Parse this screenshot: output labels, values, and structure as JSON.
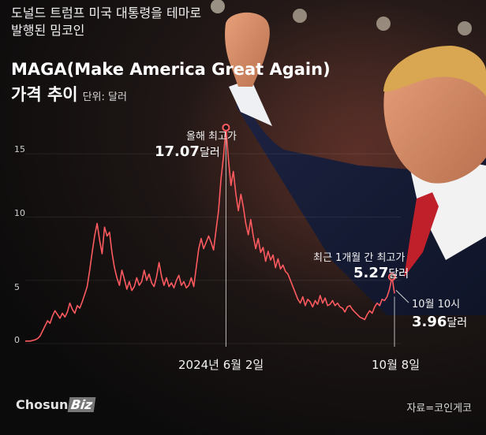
{
  "title": {
    "line1": "도널드 트럼프 미국 대통령을 테마로",
    "line2": "발행된 밈코인",
    "line3": "MAGA(Make America Great Again)",
    "line4": "가격 추이",
    "unit": "단위: 달러"
  },
  "chart_data": {
    "type": "line",
    "title": "MAGA(Make America Great Again) 가격 추이",
    "unit": "단위: 달러",
    "ylim": [
      0,
      17.5
    ],
    "yticks": [
      "0",
      "5",
      "10",
      "15"
    ],
    "xticks": [
      "2024년 6월 2일",
      "10월 8일"
    ],
    "series": [
      {
        "color": "#ff5a5f",
        "values": [
          0.2,
          0.2,
          0.2,
          0.25,
          0.3,
          0.4,
          0.6,
          1.0,
          1.4,
          1.8,
          1.6,
          2.2,
          2.6,
          2.3,
          2.0,
          2.4,
          2.1,
          2.5,
          3.2,
          2.7,
          2.4,
          3.0,
          2.8,
          3.3,
          3.9,
          4.5,
          5.8,
          7.2,
          8.5,
          9.5,
          8.2,
          7.1,
          9.2,
          8.5,
          8.8,
          7.2,
          6.0,
          5.2,
          4.6,
          5.8,
          5.1,
          4.3,
          4.9,
          4.2,
          4.5,
          5.2,
          4.6,
          4.9,
          5.8,
          5.0,
          5.5,
          4.8,
          4.5,
          5.3,
          6.4,
          5.3,
          4.6,
          5.2,
          4.5,
          4.8,
          4.4,
          5.0,
          5.4,
          4.6,
          4.9,
          4.4,
          4.6,
          5.2,
          4.5,
          6.0,
          7.5,
          8.3,
          7.5,
          8.0,
          8.5,
          8.0,
          7.4,
          9.0,
          10.5,
          13.0,
          14.8,
          17.07,
          14.5,
          12.5,
          13.6,
          11.8,
          10.5,
          11.8,
          10.8,
          9.5,
          8.6,
          9.8,
          8.5,
          7.5,
          8.3,
          7.2,
          7.6,
          6.5,
          7.3,
          6.6,
          7.0,
          6.0,
          6.7,
          5.9,
          6.2,
          5.7,
          5.5,
          5.0,
          4.5,
          4.0,
          3.5,
          3.2,
          3.7,
          3.0,
          3.5,
          3.3,
          2.9,
          3.4,
          3.1,
          3.8,
          3.2,
          3.6,
          3.0,
          3.1,
          3.4,
          3.0,
          3.2,
          2.9,
          2.8,
          2.5,
          2.9,
          3.0,
          2.7,
          2.5,
          2.3,
          2.1,
          2.0,
          1.9,
          2.3,
          2.6,
          2.4,
          2.9,
          3.2,
          3.0,
          3.5,
          3.4,
          3.7,
          4.3,
          5.27,
          3.96
        ]
      }
    ],
    "annotations": [
      {
        "label": "올해 최고가",
        "value": "17.07",
        "unit": "달러"
      },
      {
        "label": "최근 1개월 간 최고가",
        "value": "5.27",
        "unit": "달러"
      },
      {
        "label": "10월 10시",
        "value": "3.96",
        "unit": "달러"
      }
    ]
  },
  "footer": {
    "logo_main": "Chosun",
    "logo_biz": "Biz",
    "source": "자료=코인게코"
  }
}
